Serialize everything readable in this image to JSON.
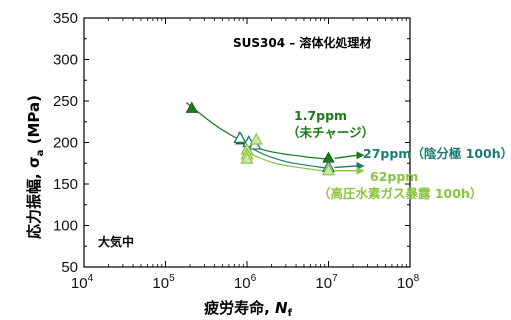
{
  "chart_data": {
    "type": "scatter",
    "title": "SUS304 – 溶体化処理材",
    "environment_label": "大気中",
    "xlabel": {
      "main": "疲労寿命, ",
      "var": "N",
      "sub": "f"
    },
    "ylabel": {
      "main": "応力振幅, ",
      "var": "σ",
      "sub": "a",
      "unit": " (MPa)"
    },
    "x_scale": "log",
    "xlim": [
      10000,
      100000000
    ],
    "ylim": [
      50,
      350
    ],
    "x_ticks": [
      {
        "base": "10",
        "exp": "4",
        "value": 10000
      },
      {
        "base": "10",
        "exp": "5",
        "value": 100000
      },
      {
        "base": "10",
        "exp": "6",
        "value": 1000000
      },
      {
        "base": "10",
        "exp": "7",
        "value": 10000000
      },
      {
        "base": "10",
        "exp": "8",
        "value": 100000000
      }
    ],
    "y_ticks": [
      "50",
      "100",
      "150",
      "200",
      "250",
      "300",
      "350"
    ],
    "grid": false,
    "series": [
      {
        "name_lines": [
          "1.7ppm",
          "（未チャージ）"
        ],
        "color": "#1a7a1a",
        "marker": "filled-triangle",
        "points": [
          {
            "x": 210000,
            "y": 241
          },
          {
            "x": 850000,
            "y": 203
          },
          {
            "x": 10000000,
            "y": 181
          }
        ],
        "runout": [
          10000000
        ],
        "curve": [
          [
            180000,
            248
          ],
          [
            500000,
            215
          ],
          [
            1500000,
            192
          ],
          [
            5000000,
            183
          ],
          [
            10000000,
            180
          ]
        ]
      },
      {
        "name_lines": [
          "27ppm（陰分極 100h）"
        ],
        "color": "#1c7b73",
        "marker": "open-triangle",
        "points": [
          {
            "x": 820000,
            "y": 205
          },
          {
            "x": 1050000,
            "y": 200
          },
          {
            "x": 1250000,
            "y": 197
          },
          {
            "x": 10000000,
            "y": 170
          }
        ],
        "runout": [
          10000000
        ],
        "curve": [
          [
            780000,
            212
          ],
          [
            1200000,
            192
          ],
          [
            3000000,
            177
          ],
          [
            10000000,
            169
          ]
        ]
      },
      {
        "name_lines": [
          "62ppm",
          "（高圧水素ガス暴露 100h）"
        ],
        "color": "#8ac540",
        "marker": "light-triangle",
        "points": [
          {
            "x": 1000000,
            "y": 191
          },
          {
            "x": 1000000,
            "y": 185
          },
          {
            "x": 1000000,
            "y": 180
          },
          {
            "x": 1300000,
            "y": 203
          },
          {
            "x": 10000000,
            "y": 166
          }
        ],
        "runout": [
          10000000
        ],
        "curve": [
          [
            1050000,
            187
          ],
          [
            2200000,
            175
          ],
          [
            5000000,
            169
          ],
          [
            10000000,
            165
          ]
        ]
      }
    ]
  }
}
